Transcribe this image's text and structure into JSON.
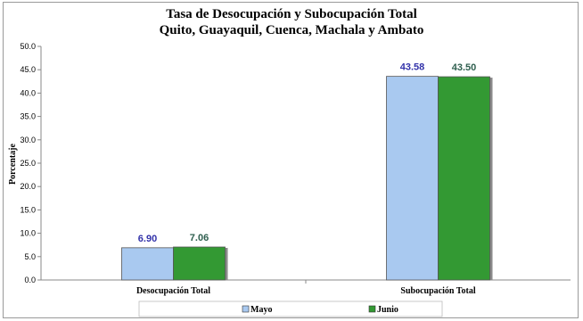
{
  "chart_data": {
    "type": "bar",
    "title": "Tasa de Desocupación y Subocupación Total",
    "subtitle": "Quito, Guayaquil, Cuenca, Machala y Ambato",
    "ylabel": "Porcentaje",
    "xlabel": "",
    "ylim": [
      0,
      50
    ],
    "yticks": [
      "0.0",
      "5.0",
      "10.0",
      "15.0",
      "20.0",
      "25.0",
      "30.0",
      "35.0",
      "40.0",
      "45.0",
      "50.0"
    ],
    "categories": [
      "Desocupación Total",
      "Subocupación Total"
    ],
    "series": [
      {
        "name": "Mayo",
        "values": [
          6.9,
          43.58
        ],
        "labels": [
          "6.90",
          "43.58"
        ],
        "color": "#a9c9f0",
        "label_color": "#3333aa"
      },
      {
        "name": "Junio",
        "values": [
          7.06,
          43.5
        ],
        "labels": [
          "7.06",
          "43.50"
        ],
        "color": "#339933",
        "label_color": "#2f5f4f"
      }
    ],
    "grid": false,
    "legend": "bottom"
  }
}
